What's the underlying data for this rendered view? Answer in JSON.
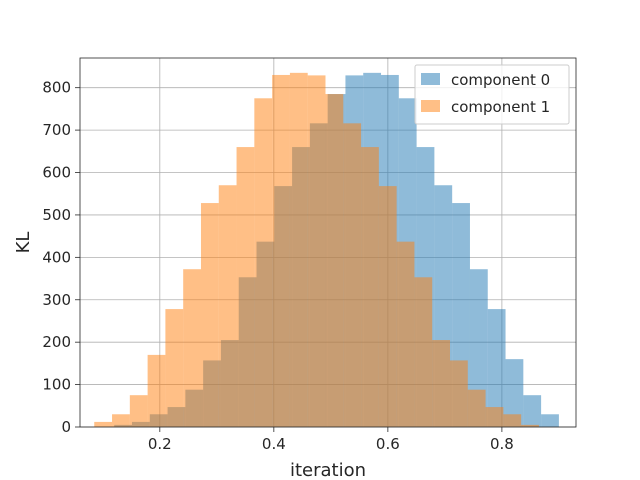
{
  "chart_data": {
    "type": "bar",
    "subtype": "overlapping-histogram",
    "title": "",
    "xlabel": "iteration",
    "ylabel": "KL",
    "xlim": [
      0.06,
      0.93
    ],
    "ylim": [
      0,
      870
    ],
    "x_ticks": [
      0.2,
      0.4,
      0.6,
      0.8
    ],
    "y_ticks": [
      0,
      100,
      200,
      300,
      400,
      500,
      600,
      700,
      800
    ],
    "grid": true,
    "legend": "top-right",
    "bin_width": 0.0312,
    "series": [
      {
        "name": "component 0",
        "color": "#1f77b4",
        "opacity": 0.5,
        "bin_starts": [
          0.12,
          0.1512,
          0.1824,
          0.2136,
          0.2448,
          0.276,
          0.3072,
          0.3384,
          0.3696,
          0.4008,
          0.432,
          0.4632,
          0.4944,
          0.5256,
          0.5568,
          0.588,
          0.6192,
          0.6504,
          0.6816,
          0.7128,
          0.744,
          0.7752,
          0.8064,
          0.8376,
          0.8688
        ],
        "counts": [
          5,
          12,
          30,
          47,
          88,
          157,
          205,
          353,
          437,
          568,
          660,
          716,
          785,
          829,
          835,
          830,
          775,
          660,
          570,
          528,
          372,
          278,
          160,
          75,
          30
        ]
      },
      {
        "name": "component 1",
        "color": "#ff7f0e",
        "opacity": 0.5,
        "bin_starts": [
          0.085,
          0.1162,
          0.1474,
          0.1786,
          0.2098,
          0.241,
          0.2722,
          0.3034,
          0.3346,
          0.3658,
          0.397,
          0.4282,
          0.4594,
          0.4906,
          0.5218,
          0.553,
          0.5842,
          0.6154,
          0.6466,
          0.6778,
          0.709,
          0.7402,
          0.7714,
          0.8026,
          0.8338
        ],
        "counts": [
          12,
          30,
          75,
          170,
          278,
          372,
          528,
          570,
          660,
          775,
          830,
          835,
          829,
          785,
          716,
          660,
          568,
          437,
          353,
          205,
          157,
          88,
          47,
          30,
          5
        ]
      }
    ]
  }
}
